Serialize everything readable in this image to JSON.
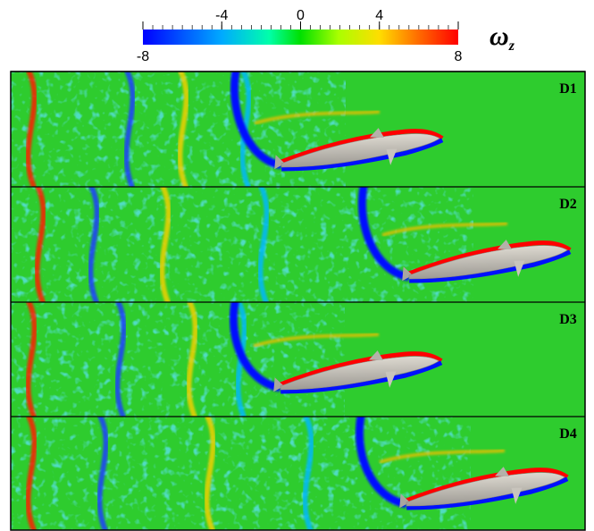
{
  "colorbar": {
    "symbol": "ω",
    "symbol_subscript": "z",
    "lim": [
      -8,
      8
    ],
    "ticks": [
      -8,
      -4,
      0,
      4,
      8
    ]
  },
  "panels": [
    "D1",
    "D2",
    "D3",
    "D4"
  ]
}
